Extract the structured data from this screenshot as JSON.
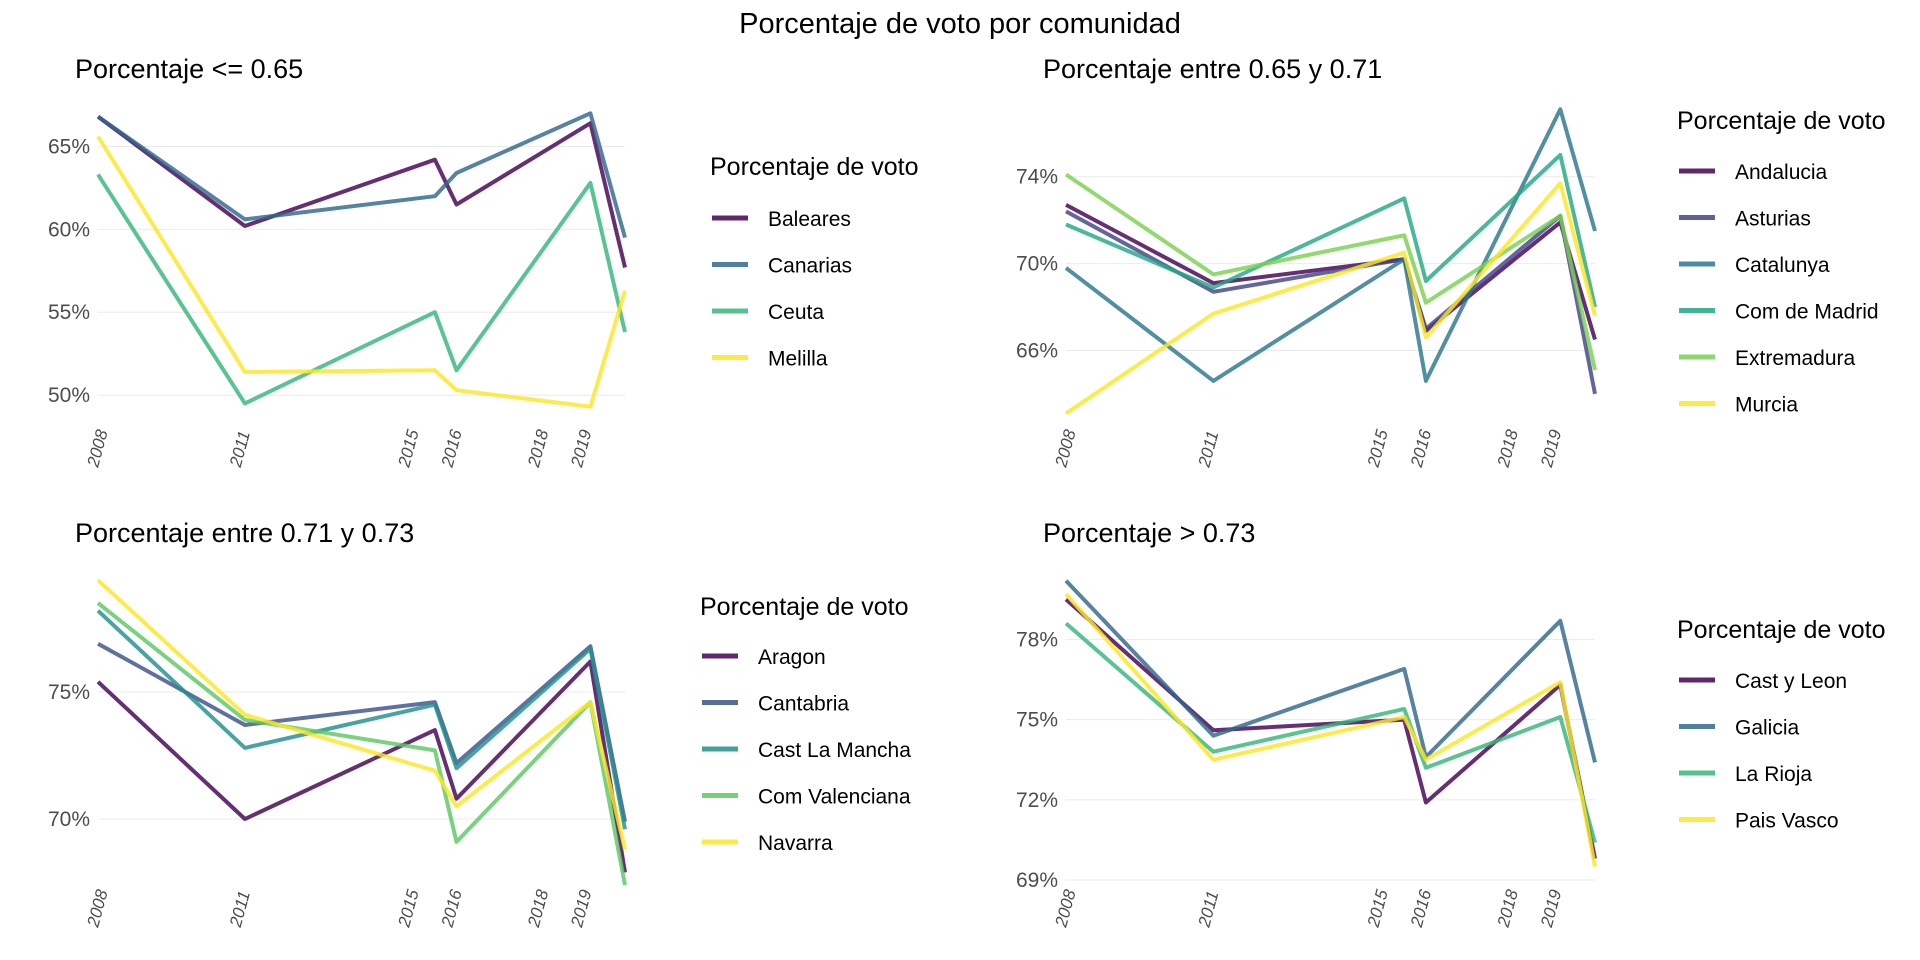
{
  "title": "Porcentaje de voto por comunidad",
  "colors": {
    "viridis2": [
      "#440154",
      "#FDE725"
    ],
    "viridis4": [
      "#440154",
      "#31688E",
      "#35B779",
      "#FDE725"
    ],
    "viridis5": [
      "#440154",
      "#3B528B",
      "#21908C",
      "#5DC863",
      "#FDE725"
    ],
    "viridis6": [
      "#440154",
      "#414487",
      "#2A788E",
      "#22A884",
      "#7AD151",
      "#FDE725"
    ]
  },
  "chart_data": [
    {
      "type": "line",
      "title": "Porcentaje <= 0.65",
      "legend_title": "Porcentaje de voto",
      "xlabel": "",
      "ylabel": "",
      "x_ticks": [
        "2008",
        "2011",
        "2015",
        "2016",
        "2018",
        "2019"
      ],
      "xlim": [
        2008,
        2020.2
      ],
      "y_ticks": [
        "50%",
        "55%",
        "60%",
        "65%"
      ],
      "y_tick_values": [
        50,
        55,
        60,
        65
      ],
      "ylim": [
        48.5,
        67.5
      ],
      "legend_position": "right",
      "series": [
        {
          "name": "Baleares",
          "x": [
            2008,
            2011.4,
            2015.8,
            2016.3,
            2019.4,
            2020.2
          ],
          "y": [
            66.8,
            60.2,
            64.2,
            61.5,
            66.4,
            57.7
          ]
        },
        {
          "name": "Canarias",
          "x": [
            2008,
            2011.4,
            2015.8,
            2016.3,
            2019.4,
            2020.2
          ],
          "y": [
            66.8,
            60.6,
            62.0,
            63.4,
            67.0,
            59.5
          ]
        },
        {
          "name": "Ceuta",
          "x": [
            2008,
            2011.4,
            2015.8,
            2016.3,
            2019.4,
            2020.2
          ],
          "y": [
            63.3,
            49.5,
            55.0,
            51.5,
            62.8,
            53.8
          ]
        },
        {
          "name": "Melilla",
          "x": [
            2008,
            2011.4,
            2015.8,
            2016.3,
            2019.4,
            2020.2
          ],
          "y": [
            65.6,
            51.4,
            51.5,
            50.3,
            49.3,
            56.3
          ]
        }
      ]
    },
    {
      "type": "line",
      "title": "Porcentaje entre 0.65 y 0.71",
      "legend_title": "Porcentaje de voto",
      "xlabel": "",
      "ylabel": "",
      "x_ticks": [
        "2008",
        "2011",
        "2015",
        "2016",
        "2018",
        "2019"
      ],
      "xlim": [
        2008,
        2020.2
      ],
      "y_ticks": [
        "66%",
        "70%",
        "74%"
      ],
      "y_tick_values": [
        66,
        70,
        74
      ],
      "ylim": [
        62.8,
        77.3
      ],
      "legend_position": "right",
      "series": [
        {
          "name": "Andalucia",
          "x": [
            2008,
            2011.4,
            2015.8,
            2016.3,
            2019.4,
            2020.2
          ],
          "y": [
            72.7,
            69.1,
            70.2,
            66.9,
            71.9,
            66.5
          ]
        },
        {
          "name": "Asturias",
          "x": [
            2008,
            2011.4,
            2015.8,
            2016.3,
            2019.4,
            2020.2
          ],
          "y": [
            72.4,
            68.7,
            70.2,
            67.0,
            72.2,
            64.0
          ]
        },
        {
          "name": "Catalunya",
          "x": [
            2008,
            2011.4,
            2015.8,
            2016.3,
            2019.4,
            2020.2
          ],
          "y": [
            69.8,
            64.6,
            70.2,
            64.6,
            77.1,
            71.5
          ]
        },
        {
          "name": "Com de Madrid",
          "x": [
            2008,
            2011.4,
            2015.8,
            2016.3,
            2019.4,
            2020.2
          ],
          "y": [
            71.8,
            68.9,
            73.0,
            69.2,
            75.0,
            68.0
          ]
        },
        {
          "name": "Extremadura",
          "x": [
            2008,
            2011.4,
            2015.8,
            2016.3,
            2019.4,
            2020.2
          ],
          "y": [
            74.1,
            69.5,
            71.3,
            68.2,
            72.2,
            65.1
          ]
        },
        {
          "name": "Murcia",
          "x": [
            2008,
            2011.4,
            2015.8,
            2016.3,
            2019.4,
            2020.2
          ],
          "y": [
            63.1,
            67.7,
            70.5,
            66.6,
            73.7,
            67.6
          ]
        }
      ]
    },
    {
      "type": "line",
      "title": "Porcentaje entre 0.71 y 0.73",
      "legend_title": "Porcentaje de voto",
      "xlabel": "",
      "ylabel": "",
      "x_ticks": [
        "2008",
        "2011",
        "2015",
        "2016",
        "2018",
        "2019"
      ],
      "xlim": [
        2008,
        2020.2
      ],
      "y_ticks": [
        "70%",
        "75%"
      ],
      "y_tick_values": [
        70,
        75
      ],
      "ylim": [
        67.6,
        79.8
      ],
      "legend_position": "right",
      "series": [
        {
          "name": "Aragon",
          "x": [
            2008,
            2011.4,
            2015.8,
            2016.3,
            2019.4,
            2020.2
          ],
          "y": [
            75.4,
            70.0,
            73.5,
            70.8,
            76.2,
            67.9
          ]
        },
        {
          "name": "Cantabria",
          "x": [
            2008,
            2011.4,
            2015.8,
            2016.3,
            2019.4,
            2020.2
          ],
          "y": [
            76.9,
            73.7,
            74.6,
            72.2,
            76.8,
            69.9
          ]
        },
        {
          "name": "Cast La Mancha",
          "x": [
            2008,
            2011.4,
            2015.8,
            2016.3,
            2019.4,
            2020.2
          ],
          "y": [
            78.2,
            72.8,
            74.5,
            72.0,
            76.7,
            69.6
          ]
        },
        {
          "name": "Com Valenciana",
          "x": [
            2008,
            2011.4,
            2015.8,
            2016.3,
            2019.4,
            2020.2
          ],
          "y": [
            78.5,
            73.9,
            72.7,
            69.1,
            74.6,
            67.4
          ]
        },
        {
          "name": "Navarra",
          "x": [
            2008,
            2011.4,
            2015.8,
            2016.3,
            2019.4,
            2020.2
          ],
          "y": [
            79.4,
            74.1,
            71.9,
            70.5,
            74.6,
            68.8
          ]
        }
      ]
    },
    {
      "type": "line",
      "title": "Porcentaje > 0.73",
      "legend_title": "Porcentaje de voto",
      "xlabel": "",
      "ylabel": "",
      "x_ticks": [
        "2008",
        "2011",
        "2015",
        "2016",
        "2018",
        "2019"
      ],
      "xlim": [
        2008,
        2020.2
      ],
      "y_ticks": [
        "69%",
        "72%",
        "75%",
        "78%"
      ],
      "y_tick_values": [
        69,
        72,
        75,
        78
      ],
      "ylim": [
        69,
        80.6
      ],
      "legend_position": "right",
      "series": [
        {
          "name": "Cast y Leon",
          "x": [
            2008,
            2011.4,
            2015.8,
            2016.3,
            2019.4,
            2020.2
          ],
          "y": [
            79.5,
            74.6,
            75.0,
            71.9,
            76.3,
            69.8
          ]
        },
        {
          "name": "Galicia",
          "x": [
            2008,
            2011.4,
            2015.8,
            2016.3,
            2019.4,
            2020.2
          ],
          "y": [
            80.2,
            74.4,
            76.9,
            73.6,
            78.7,
            73.4
          ]
        },
        {
          "name": "La Rioja",
          "x": [
            2008,
            2011.4,
            2015.8,
            2016.3,
            2019.4,
            2020.2
          ],
          "y": [
            78.6,
            73.8,
            75.4,
            73.2,
            75.1,
            70.4
          ]
        },
        {
          "name": "Pais Vasco",
          "x": [
            2008,
            2011.4,
            2015.8,
            2016.3,
            2019.4,
            2020.2
          ],
          "y": [
            79.7,
            73.5,
            75.1,
            73.5,
            76.4,
            69.5
          ]
        }
      ]
    }
  ]
}
